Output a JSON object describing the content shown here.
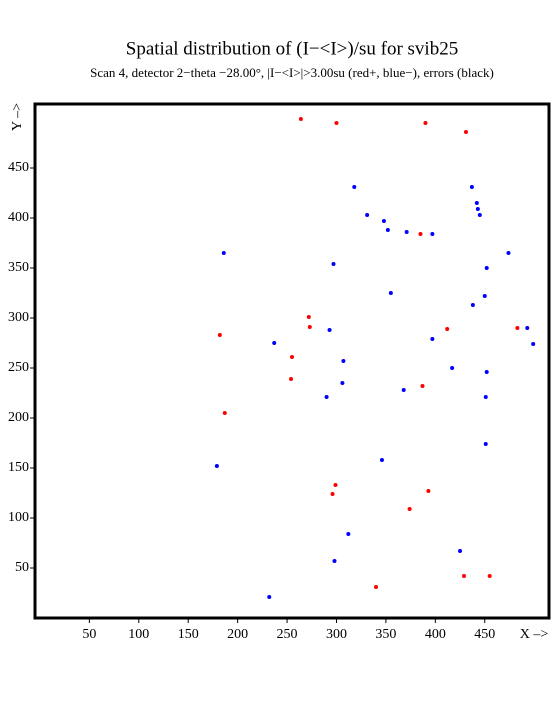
{
  "chart_data": {
    "type": "scatter",
    "title": "Spatial distribution of (I−<I>)/su for svib25",
    "subtitle": "Scan  4, detector 2−theta −28.00°, |I−<I>|>3.00su (red+, blue−), errors (black)",
    "x_label": "X –>",
    "y_label": "Y –>",
    "xlim": [
      -5,
      515
    ],
    "ylim": [
      0,
      514
    ],
    "xticks": [
      50,
      100,
      150,
      200,
      250,
      300,
      350,
      400,
      450
    ],
    "yticks": [
      50,
      100,
      150,
      200,
      250,
      300,
      350,
      400,
      450
    ],
    "series": [
      {
        "color": "#ff0000",
        "x": [
          264,
          300,
          390,
          431,
          385,
          272,
          273,
          182,
          412,
          483,
          255,
          254,
          387,
          187,
          299,
          296,
          393,
          374,
          340,
          429,
          455
        ],
        "values": [
          499,
          495,
          495,
          486,
          384,
          301,
          291,
          283,
          289,
          290,
          261,
          239,
          232,
          205,
          133,
          124,
          127,
          109,
          31,
          42,
          42
        ]
      },
      {
        "color": "#0000ff",
        "x": [
          186,
          318,
          331,
          348,
          352,
          371,
          397,
          437,
          442,
          443,
          445,
          474,
          452,
          297,
          355,
          450,
          438,
          493,
          499,
          237,
          293,
          397,
          417,
          307,
          452,
          306,
          368,
          290,
          451,
          451,
          346,
          179,
          312,
          425,
          298,
          232
        ],
        "values": [
          365,
          431,
          403,
          397,
          388,
          386,
          384,
          431,
          415,
          409,
          403,
          365,
          350,
          354,
          325,
          322,
          313,
          290,
          274,
          275,
          288,
          279,
          250,
          257,
          246,
          235,
          228,
          221,
          221,
          174,
          158,
          152,
          84,
          67,
          57,
          21
        ]
      }
    ]
  }
}
